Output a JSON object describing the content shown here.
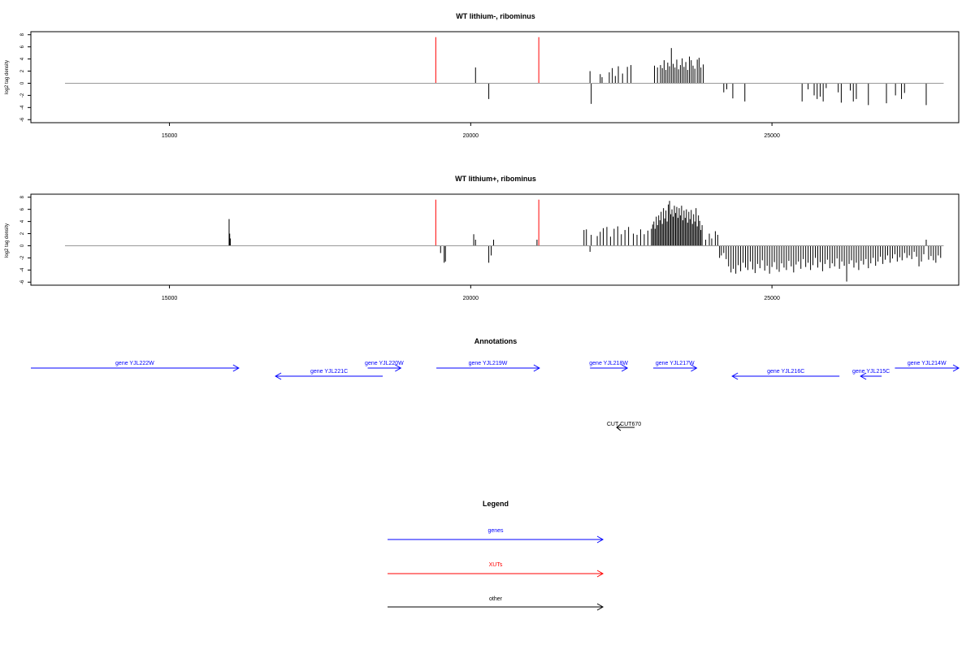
{
  "colors": {
    "gene": "#0000ff",
    "xut": "#ff0000",
    "other": "#000000",
    "baseline": "#999999",
    "frame": "#000000"
  },
  "chart_data": [
    {
      "type": "bar",
      "title": "WT lithium-, ribominus",
      "ylabel": "log2 tag density",
      "xlim": [
        12700,
        28100
      ],
      "ylim": [
        -6.5,
        8.5
      ],
      "baseline_range": [
        12700,
        27850
      ],
      "xticks": [
        15000,
        20000,
        25000
      ],
      "yticks": [
        8,
        6,
        4,
        2,
        0,
        -2,
        -4,
        -6
      ],
      "markers": [
        19420,
        21130
      ],
      "bars": [
        [
          20080,
          2.6
        ],
        [
          20300,
          -2.6
        ],
        [
          21980,
          2.0
        ],
        [
          22000,
          -3.4
        ],
        [
          22150,
          1.5
        ],
        [
          22180,
          1.0
        ],
        [
          22300,
          1.8
        ],
        [
          22350,
          2.5
        ],
        [
          22400,
          1.2
        ],
        [
          22450,
          2.8
        ],
        [
          22520,
          1.6
        ],
        [
          22600,
          2.7
        ],
        [
          22660,
          3.0
        ],
        [
          23050,
          2.9
        ],
        [
          23100,
          2.6
        ],
        [
          23150,
          3.0
        ],
        [
          23180,
          2.5
        ],
        [
          23210,
          3.8
        ],
        [
          23240,
          2.2
        ],
        [
          23270,
          3.4
        ],
        [
          23300,
          2.8
        ],
        [
          23330,
          5.8
        ],
        [
          23360,
          3.2
        ],
        [
          23390,
          2.6
        ],
        [
          23420,
          3.9
        ],
        [
          23450,
          2.3
        ],
        [
          23480,
          3.0
        ],
        [
          23510,
          4.1
        ],
        [
          23540,
          2.7
        ],
        [
          23570,
          3.5
        ],
        [
          23600,
          2.2
        ],
        [
          23630,
          4.4
        ],
        [
          23660,
          3.8
        ],
        [
          23690,
          2.9
        ],
        [
          23720,
          2.4
        ],
        [
          23760,
          3.9
        ],
        [
          23790,
          4.2
        ],
        [
          23820,
          2.6
        ],
        [
          23860,
          3.1
        ],
        [
          24200,
          -1.5
        ],
        [
          24250,
          -1.0
        ],
        [
          24350,
          -2.5
        ],
        [
          24550,
          -3.0
        ],
        [
          25500,
          -3.0
        ],
        [
          25600,
          -1.0
        ],
        [
          25700,
          -2.0
        ],
        [
          25750,
          -2.6
        ],
        [
          25800,
          -2.2
        ],
        [
          25850,
          -3.0
        ],
        [
          25900,
          -0.8
        ],
        [
          26100,
          -1.5
        ],
        [
          26150,
          -3.2
        ],
        [
          26300,
          -1.2
        ],
        [
          26350,
          -3.0
        ],
        [
          26400,
          -2.6
        ],
        [
          26600,
          -3.6
        ],
        [
          26900,
          -3.3
        ],
        [
          27050,
          -2.0
        ],
        [
          27150,
          -2.6
        ],
        [
          27200,
          -1.6
        ],
        [
          27560,
          -3.6
        ]
      ]
    },
    {
      "type": "bar",
      "title": "WT lithium+, ribominus",
      "ylabel": "log2 tag density",
      "xlim": [
        12700,
        28100
      ],
      "ylim": [
        -6.5,
        8.5
      ],
      "baseline_range": [
        12700,
        27850
      ],
      "xticks": [
        15000,
        20000,
        25000
      ],
      "yticks": [
        8,
        6,
        4,
        2,
        0,
        -2,
        -4,
        -6
      ],
      "markers": [
        19420,
        21130
      ],
      "bars": [
        [
          15990,
          4.4
        ],
        [
          16000,
          2.0
        ],
        [
          16010,
          1.2
        ],
        [
          19500,
          -1.2
        ],
        [
          19560,
          -2.8
        ],
        [
          19580,
          -2.6
        ],
        [
          20050,
          1.9
        ],
        [
          20080,
          1.0
        ],
        [
          20300,
          -2.8
        ],
        [
          20340,
          -1.6
        ],
        [
          20380,
          1.0
        ],
        [
          21100,
          1.0
        ],
        [
          21880,
          2.6
        ],
        [
          21920,
          2.7
        ],
        [
          21980,
          -1.0
        ],
        [
          22000,
          1.8
        ],
        [
          22100,
          1.6
        ],
        [
          22150,
          2.3
        ],
        [
          22200,
          2.9
        ],
        [
          22260,
          3.1
        ],
        [
          22320,
          1.5
        ],
        [
          22380,
          2.8
        ],
        [
          22440,
          3.2
        ],
        [
          22500,
          1.9
        ],
        [
          22560,
          2.6
        ],
        [
          22620,
          3.1
        ],
        [
          22700,
          2.0
        ],
        [
          22760,
          1.8
        ],
        [
          22820,
          2.7
        ],
        [
          22880,
          1.9
        ],
        [
          22940,
          2.5
        ],
        [
          23000,
          2.8
        ],
        [
          23020,
          3.5
        ],
        [
          23040,
          4.0
        ],
        [
          23060,
          2.8
        ],
        [
          23080,
          4.8
        ],
        [
          23100,
          3.4
        ],
        [
          23120,
          5.0
        ],
        [
          23140,
          4.2
        ],
        [
          23160,
          5.6
        ],
        [
          23180,
          3.6
        ],
        [
          23200,
          6.2
        ],
        [
          23220,
          4.5
        ],
        [
          23240,
          5.8
        ],
        [
          23260,
          4.0
        ],
        [
          23280,
          6.8
        ],
        [
          23300,
          7.4
        ],
        [
          23320,
          5.2
        ],
        [
          23340,
          6.0
        ],
        [
          23360,
          4.8
        ],
        [
          23380,
          6.6
        ],
        [
          23400,
          5.4
        ],
        [
          23420,
          6.4
        ],
        [
          23440,
          4.6
        ],
        [
          23460,
          6.2
        ],
        [
          23480,
          5.0
        ],
        [
          23500,
          6.6
        ],
        [
          23520,
          4.2
        ],
        [
          23540,
          5.8
        ],
        [
          23560,
          4.6
        ],
        [
          23580,
          6.0
        ],
        [
          23600,
          3.8
        ],
        [
          23620,
          5.6
        ],
        [
          23640,
          4.4
        ],
        [
          23660,
          5.9
        ],
        [
          23680,
          3.6
        ],
        [
          23700,
          5.2
        ],
        [
          23720,
          4.0
        ],
        [
          23740,
          6.2
        ],
        [
          23760,
          3.2
        ],
        [
          23780,
          5.0
        ],
        [
          23800,
          4.1
        ],
        [
          23820,
          2.6
        ],
        [
          23840,
          3.4
        ],
        [
          23900,
          1.0
        ],
        [
          23960,
          2.0
        ],
        [
          24000,
          1.2
        ],
        [
          24060,
          2.4
        ],
        [
          24100,
          1.8
        ],
        [
          24130,
          -2.0
        ],
        [
          24160,
          -1.6
        ],
        [
          24200,
          -1.2
        ],
        [
          24240,
          -2.2
        ],
        [
          24280,
          -3.4
        ],
        [
          24320,
          -4.4
        ],
        [
          24360,
          -3.8
        ],
        [
          24400,
          -4.6
        ],
        [
          24440,
          -3.2
        ],
        [
          24480,
          -4.2
        ],
        [
          24520,
          -2.8
        ],
        [
          24560,
          -3.6
        ],
        [
          24600,
          -4.0
        ],
        [
          24640,
          -2.6
        ],
        [
          24680,
          -3.9
        ],
        [
          24720,
          -4.5
        ],
        [
          24760,
          -3.0
        ],
        [
          24800,
          -3.7
        ],
        [
          24840,
          -2.4
        ],
        [
          24880,
          -4.1
        ],
        [
          24920,
          -3.3
        ],
        [
          24960,
          -4.6
        ],
        [
          25000,
          -3.5
        ],
        [
          25040,
          -2.7
        ],
        [
          25080,
          -3.9
        ],
        [
          25120,
          -4.3
        ],
        [
          25160,
          -2.9
        ],
        [
          25200,
          -3.6
        ],
        [
          25240,
          -4.0
        ],
        [
          25280,
          -2.5
        ],
        [
          25320,
          -3.4
        ],
        [
          25360,
          -4.4
        ],
        [
          25400,
          -3.1
        ],
        [
          25440,
          -2.6
        ],
        [
          25480,
          -3.8
        ],
        [
          25520,
          -2.2
        ],
        [
          25560,
          -3.5
        ],
        [
          25600,
          -2.8
        ],
        [
          25640,
          -4.0
        ],
        [
          25680,
          -3.2
        ],
        [
          25720,
          -2.0
        ],
        [
          25760,
          -3.6
        ],
        [
          25800,
          -2.7
        ],
        [
          25840,
          -4.2
        ],
        [
          25880,
          -3.0
        ],
        [
          25920,
          -2.3
        ],
        [
          25960,
          -3.7
        ],
        [
          26000,
          -2.9
        ],
        [
          26040,
          -3.4
        ],
        [
          26080,
          -2.1
        ],
        [
          26120,
          -3.8
        ],
        [
          26160,
          -2.6
        ],
        [
          26200,
          -3.3
        ],
        [
          26240,
          -5.9
        ],
        [
          26280,
          -3.0
        ],
        [
          26320,
          -2.4
        ],
        [
          26360,
          -3.6
        ],
        [
          26400,
          -2.8
        ],
        [
          26440,
          -4.0
        ],
        [
          26480,
          -2.5
        ],
        [
          26520,
          -3.1
        ],
        [
          26560,
          -2.2
        ],
        [
          26600,
          -3.7
        ],
        [
          26640,
          -2.9
        ],
        [
          26680,
          -2.0
        ],
        [
          26720,
          -3.3
        ],
        [
          26760,
          -2.6
        ],
        [
          26800,
          -1.8
        ],
        [
          26840,
          -3.0
        ],
        [
          26880,
          -2.3
        ],
        [
          26920,
          -1.6
        ],
        [
          26960,
          -2.8
        ],
        [
          27000,
          -2.1
        ],
        [
          27040,
          -1.4
        ],
        [
          27080,
          -2.6
        ],
        [
          27120,
          -1.9
        ],
        [
          27160,
          -2.4
        ],
        [
          27200,
          -1.2
        ],
        [
          27240,
          -2.0
        ],
        [
          27280,
          -1.6
        ],
        [
          27320,
          -2.2
        ],
        [
          27360,
          -1.0
        ],
        [
          27400,
          -1.8
        ],
        [
          27440,
          -3.4
        ],
        [
          27480,
          -2.6
        ],
        [
          27520,
          -1.4
        ],
        [
          27560,
          1.0
        ],
        [
          27600,
          -2.3
        ],
        [
          27640,
          -1.7
        ],
        [
          27680,
          -2.4
        ],
        [
          27720,
          -2.8
        ],
        [
          27760,
          -1.6
        ],
        [
          27800,
          -2.0
        ]
      ]
    }
  ],
  "annotations": {
    "title": "Annotations",
    "genes": [
      {
        "label": "gene YJL222W",
        "x1": 12700,
        "x2": 16150,
        "dir": "right",
        "row": 0
      },
      {
        "label": "gene YJL221C",
        "x1": 16760,
        "x2": 18540,
        "dir": "left",
        "row": 1
      },
      {
        "label": "gene YJL220W",
        "x1": 18290,
        "x2": 18840,
        "dir": "right",
        "row": 0
      },
      {
        "label": "gene YJL219W",
        "x1": 19430,
        "x2": 21140,
        "dir": "right",
        "row": 0
      },
      {
        "label": "gene YJL218W",
        "x1": 21980,
        "x2": 22600,
        "dir": "right",
        "row": 0
      },
      {
        "label": "gene YJL217W",
        "x1": 23030,
        "x2": 23750,
        "dir": "right",
        "row": 0
      },
      {
        "label": "gene YJL216C",
        "x1": 24340,
        "x2": 26120,
        "dir": "left",
        "row": 1
      },
      {
        "label": "gene YJL215C",
        "x1": 26470,
        "x2": 26820,
        "dir": "left",
        "row": 1
      },
      {
        "label": "gene YJL214W",
        "x1": 27040,
        "x2": 28100,
        "dir": "right",
        "row": 0
      }
    ],
    "cut": {
      "label": "CUT CUT670",
      "x1": 22300,
      "x2": 22600,
      "dir": "left"
    }
  },
  "legend": {
    "title": "Legend",
    "items": [
      {
        "label": "genes",
        "color": "#0000ff"
      },
      {
        "label": "XUTs",
        "color": "#ff0000"
      },
      {
        "label": "other",
        "color": "#000000"
      }
    ]
  }
}
